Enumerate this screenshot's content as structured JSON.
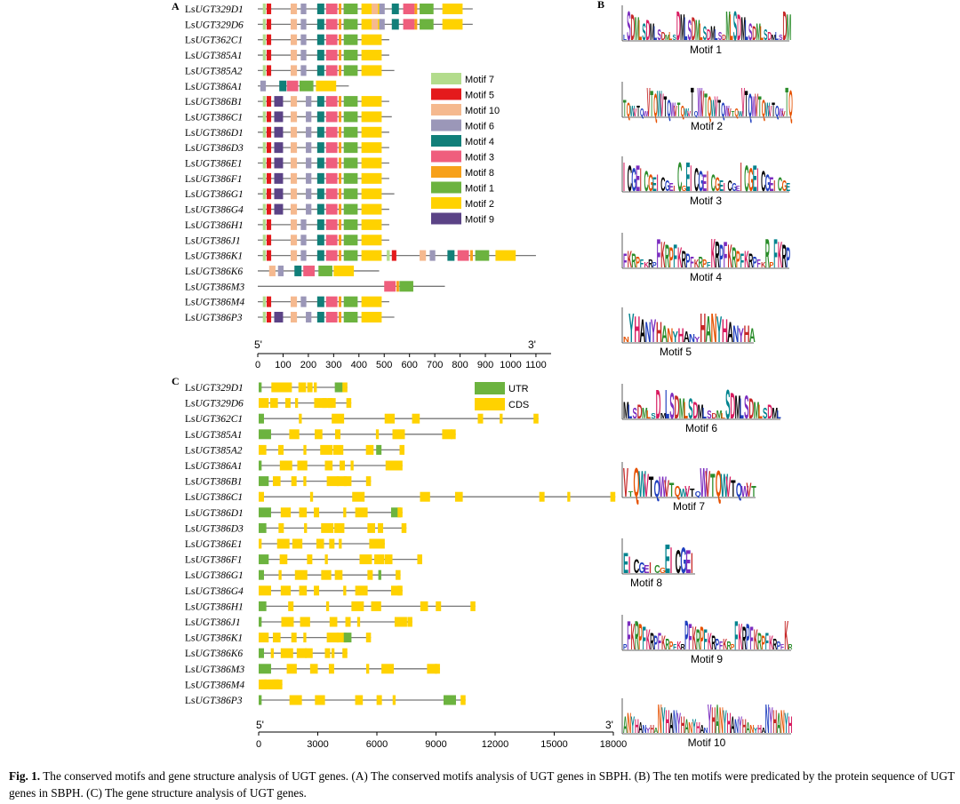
{
  "panelA": {
    "label": "A",
    "genes": [
      "UGT329D1",
      "UGT329D6",
      "UGT362C1",
      "UGT385A1",
      "UGT385A2",
      "UGT386A1",
      "UGT386B1",
      "UGT386C1",
      "UGT386D1",
      "UGT386D3",
      "UGT386E1",
      "UGT386F1",
      "UGT386G1",
      "UGT386G4",
      "UGT386H1",
      "UGT386J1",
      "UGT386K1",
      "UGT386K6",
      "UGT386M3",
      "UGT386M4",
      "UGT386P3"
    ],
    "gene_prefix": "Ls",
    "protein_lengths": [
      850,
      850,
      520,
      520,
      540,
      360,
      520,
      530,
      520,
      520,
      520,
      520,
      540,
      520,
      520,
      520,
      1100,
      480,
      740,
      520,
      540
    ],
    "legend": [
      {
        "name": "Motif 7",
        "color": "#b3dc8c"
      },
      {
        "name": "Motif 5",
        "color": "#e41a1c"
      },
      {
        "name": "Motif 10",
        "color": "#f5b98f"
      },
      {
        "name": "Motif 6",
        "color": "#9b97b8"
      },
      {
        "name": "Motif 4",
        "color": "#117f79"
      },
      {
        "name": "Motif 3",
        "color": "#ef5e7d"
      },
      {
        "name": "Motif 8",
        "color": "#f7a11a"
      },
      {
        "name": "Motif 1",
        "color": "#6cb33f"
      },
      {
        "name": "Motif 2",
        "color": "#ffd200"
      },
      {
        "name": "Motif 9",
        "color": "#5b4386"
      }
    ],
    "axis": {
      "start_label": "5'",
      "end_label": "3'",
      "ticks": [
        0,
        100,
        200,
        300,
        400,
        500,
        600,
        700,
        800,
        900,
        1000,
        1100
      ],
      "max": 1160
    }
  },
  "panelB": {
    "label": "B",
    "motifs": [
      "Motif 1",
      "Motif 2",
      "Motif 3",
      "Motif 4",
      "Motif 5",
      "Motif 6",
      "Motif 7",
      "Motif 8",
      "Motif 9",
      "Motif 10"
    ]
  },
  "panelC": {
    "label": "C",
    "gene_prefix": "Ls",
    "genes": [
      "UGT329D1",
      "UGT329D6",
      "UGT362C1",
      "UGT385A1",
      "UGT385A2",
      "UGT386A1",
      "UGT386B1",
      "UGT386C1",
      "UGT386D1",
      "UGT386D3",
      "UGT386E1",
      "UGT386F1",
      "UGT386G1",
      "UGT386G4",
      "UGT386H1",
      "UGT386J1",
      "UGT386K1",
      "UGT386K6",
      "UGT386M3",
      "UGT386M4",
      "UGT386P3"
    ],
    "gene_lengths": [
      4500,
      4700,
      14200,
      10000,
      7400,
      7300,
      5700,
      18100,
      7300,
      7500,
      6400,
      8300,
      7200,
      7300,
      11000,
      7800,
      5700,
      4500,
      9200,
      1200,
      10500
    ],
    "legend": [
      {
        "name": "UTR",
        "color": "#6cb33f"
      },
      {
        "name": "CDS",
        "color": "#ffd200"
      }
    ],
    "axis": {
      "start_label": "5'",
      "end_label": "3'",
      "ticks": [
        0,
        3000,
        6000,
        9000,
        12000,
        15000,
        18000
      ],
      "max": 18000
    }
  },
  "caption": {
    "fig_label": "Fig. 1.",
    "text": "The conserved motifs and gene structure analysis of UGT genes. (A) The conserved motifs analysis of UGT genes in SBPH. (B) The ten motifs were predicated by the protein sequence of UGT genes in SBPH. (C) The gene structure analysis of UGT genes."
  }
}
